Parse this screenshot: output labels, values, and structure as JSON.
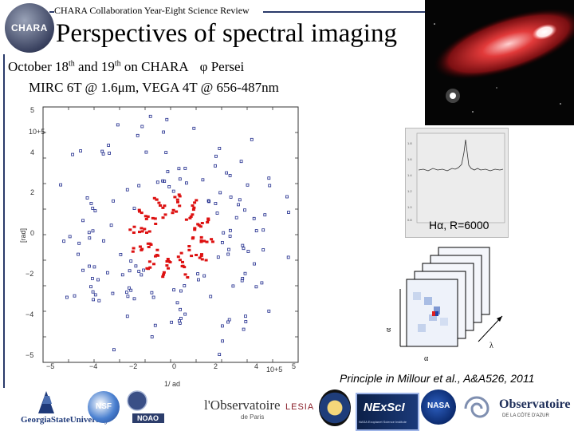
{
  "header": {
    "review_label": "CHARA Collaboration Year-Eight Science Review",
    "logo_text": "CHARA"
  },
  "title": "Perspectives of spectral imaging",
  "observation": {
    "date_prefix": "October 18",
    "th1": "th",
    "date_mid": " and 19",
    "th2": "th",
    "date_suffix": " on CHARA",
    "phi": "φ",
    "target": " Persei",
    "line2": "MIRC 6T @ 1.6μm, VEGA 4T @ 656-487nm"
  },
  "uv_plot": {
    "ytick_labels": [
      "5",
      "4",
      "2",
      "0",
      "−2",
      "−4",
      "−5"
    ],
    "xtick_labels": [
      "−5",
      "−4",
      "−2",
      "0",
      "2",
      "4",
      "5"
    ],
    "y_exponent": "10+5",
    "x_exponent": "10+5",
    "ylabel": "[rad]",
    "xlabel": "1/ ad",
    "colors": {
      "mirc": "#1e2a8c",
      "vega": "#dd1111"
    }
  },
  "spectrum": {
    "ytick_labels": [
      "1.8",
      "1.6",
      "1.4",
      "1.2",
      "1.0",
      "0.8"
    ],
    "label": "Hα, R=6000"
  },
  "cube": {
    "axis_y": "α",
    "axis_lambda": "λ",
    "axis_x": "α"
  },
  "citation": "Principle in Millour et al., A&A526, 2011",
  "logos": {
    "gsu": "GeorgiaStateUniversity",
    "nsf": "NSF",
    "noao": "NOAO",
    "obs_paris": "l'Observatoire",
    "obs_paris_sub": "de Paris",
    "lesia": "LESIA",
    "nexsci": "NExScI",
    "nexsci_sub": "NASA Exoplanet Science Institute",
    "nasa": "NASA",
    "oca": "Observatoire",
    "oca_sub": "DE LA CÔTE D'AZUR"
  }
}
